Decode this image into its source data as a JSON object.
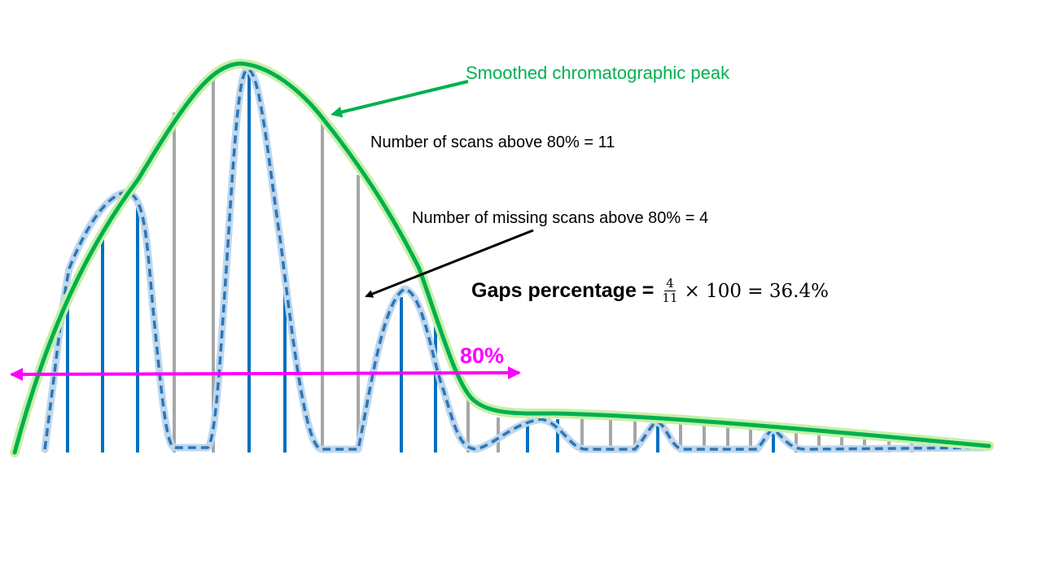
{
  "labels": {
    "peak": "Smoothed chromatographic peak",
    "scans_above": "Number of scans above 80% = 11",
    "missing_above": "Number of missing scans above 80% = 4",
    "gaps_title": "Gaps percentage =",
    "gaps_numerator": "4",
    "gaps_denominator": "11",
    "gaps_tail": "× 100 = 36.4%",
    "threshold": "80%"
  },
  "colors": {
    "smoothed_peak": "#00b050",
    "smoothed_peak_glow": "#c6f0a8",
    "raw_trace": "#2e75b6",
    "raw_trace_glow": "#bdd7ee",
    "scan_present": "#0070c0",
    "scan_missing": "#a6a6a6",
    "threshold_arrow": "#ff00ff",
    "callout_arrow": "#000000"
  }
}
